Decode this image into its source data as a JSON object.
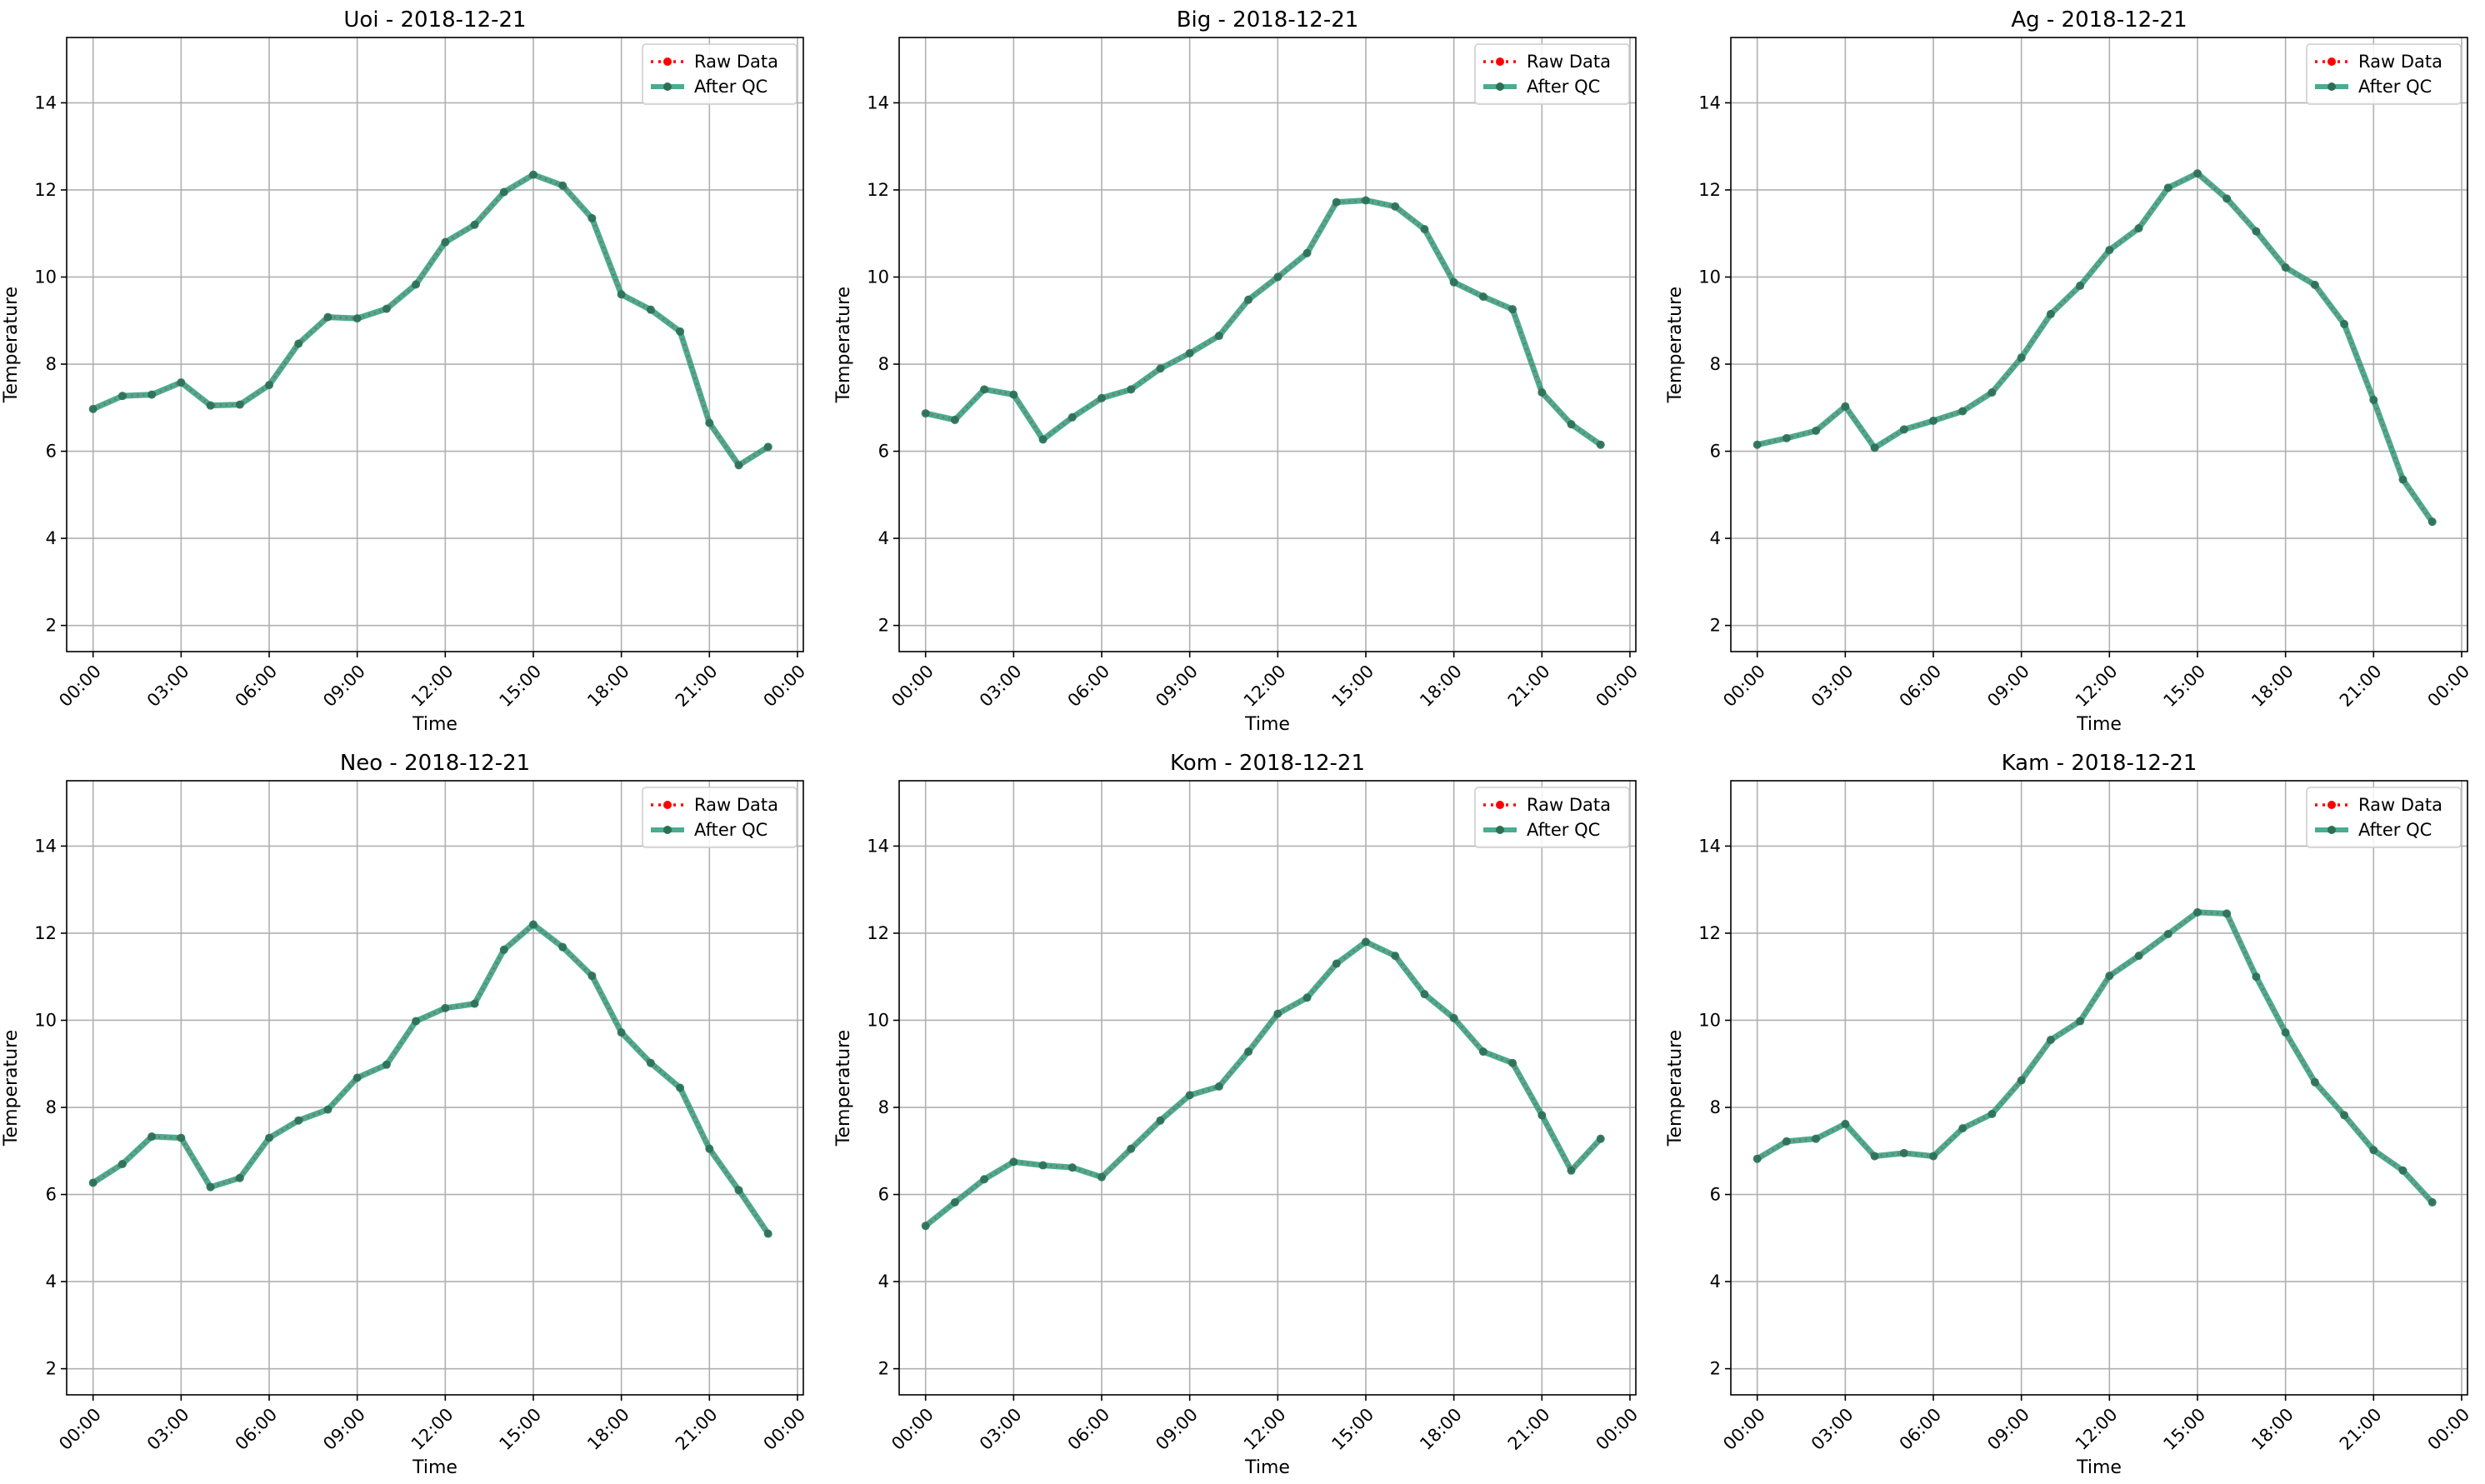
{
  "chart_data": [
    {
      "type": "line",
      "title": "Uoi - 2018-12-21",
      "xlabel": "Time",
      "ylabel": "Temperature",
      "ylim": [
        1.4,
        15.5
      ],
      "xlim_hours": [
        -0.9,
        24.2
      ],
      "x_ticks": [
        "00:00",
        "03:00",
        "06:00",
        "09:00",
        "12:00",
        "15:00",
        "18:00",
        "21:00",
        "00:00"
      ],
      "y_ticks": [
        2,
        4,
        6,
        8,
        10,
        12,
        14
      ],
      "grid": true,
      "legend": "top-right",
      "x": [
        "00:00",
        "01:00",
        "02:00",
        "03:00",
        "04:00",
        "05:00",
        "06:00",
        "07:00",
        "08:00",
        "09:00",
        "10:00",
        "11:00",
        "12:00",
        "13:00",
        "14:00",
        "15:00",
        "16:00",
        "17:00",
        "18:00",
        "19:00",
        "20:00",
        "21:00",
        "22:00",
        "23:00"
      ],
      "series": [
        {
          "name": "Raw Data",
          "color": "#ff0000",
          "values": [
            6.97,
            7.27,
            7.3,
            7.58,
            7.05,
            7.07,
            7.52,
            8.47,
            9.08,
            9.05,
            9.27,
            9.83,
            10.8,
            11.2,
            11.95,
            12.35,
            12.1,
            11.35,
            9.6,
            9.25,
            8.75,
            6.65,
            5.68,
            6.1
          ]
        },
        {
          "name": "After QC",
          "color": "#2a9d7c",
          "values": [
            6.97,
            7.27,
            7.3,
            7.58,
            7.05,
            7.07,
            7.52,
            8.47,
            9.08,
            9.05,
            9.27,
            9.83,
            10.8,
            11.2,
            11.95,
            12.35,
            12.1,
            11.35,
            9.6,
            9.25,
            8.75,
            6.65,
            5.68,
            6.1
          ]
        }
      ]
    },
    {
      "type": "line",
      "title": "Big - 2018-12-21",
      "xlabel": "Time",
      "ylabel": "Temperature",
      "ylim": [
        1.4,
        15.5
      ],
      "xlim_hours": [
        -0.9,
        24.2
      ],
      "x_ticks": [
        "00:00",
        "03:00",
        "06:00",
        "09:00",
        "12:00",
        "15:00",
        "18:00",
        "21:00",
        "00:00"
      ],
      "y_ticks": [
        2,
        4,
        6,
        8,
        10,
        12,
        14
      ],
      "grid": true,
      "legend": "top-right",
      "x": [
        "00:00",
        "01:00",
        "02:00",
        "03:00",
        "04:00",
        "05:00",
        "06:00",
        "07:00",
        "08:00",
        "09:00",
        "10:00",
        "11:00",
        "12:00",
        "13:00",
        "14:00",
        "15:00",
        "16:00",
        "17:00",
        "18:00",
        "19:00",
        "20:00",
        "21:00",
        "22:00",
        "23:00"
      ],
      "series": [
        {
          "name": "Raw Data",
          "color": "#ff0000",
          "values": [
            6.87,
            6.72,
            7.42,
            7.3,
            6.27,
            6.78,
            7.22,
            7.42,
            7.9,
            8.25,
            8.65,
            9.48,
            10.0,
            10.55,
            11.72,
            11.76,
            11.62,
            11.1,
            9.88,
            9.55,
            9.26,
            7.35,
            6.62,
            6.15
          ]
        },
        {
          "name": "After QC",
          "color": "#2a9d7c",
          "values": [
            6.87,
            6.72,
            7.42,
            7.3,
            6.27,
            6.78,
            7.22,
            7.42,
            7.9,
            8.25,
            8.65,
            9.48,
            10.0,
            10.55,
            11.72,
            11.76,
            11.62,
            11.1,
            9.88,
            9.55,
            9.26,
            7.35,
            6.62,
            6.15
          ]
        }
      ]
    },
    {
      "type": "line",
      "title": "Ag - 2018-12-21",
      "xlabel": "Time",
      "ylabel": "Temperature",
      "ylim": [
        1.4,
        15.5
      ],
      "xlim_hours": [
        -0.9,
        24.2
      ],
      "x_ticks": [
        "00:00",
        "03:00",
        "06:00",
        "09:00",
        "12:00",
        "15:00",
        "18:00",
        "21:00",
        "00:00"
      ],
      "y_ticks": [
        2,
        4,
        6,
        8,
        10,
        12,
        14
      ],
      "grid": true,
      "legend": "top-right",
      "x": [
        "00:00",
        "01:00",
        "02:00",
        "03:00",
        "04:00",
        "05:00",
        "06:00",
        "07:00",
        "08:00",
        "09:00",
        "10:00",
        "11:00",
        "12:00",
        "13:00",
        "14:00",
        "15:00",
        "16:00",
        "17:00",
        "18:00",
        "19:00",
        "20:00",
        "21:00",
        "22:00",
        "23:00"
      ],
      "series": [
        {
          "name": "Raw Data",
          "color": "#ff0000",
          "values": [
            6.15,
            6.3,
            6.47,
            7.03,
            6.08,
            6.5,
            6.7,
            6.92,
            7.35,
            8.15,
            9.15,
            9.8,
            10.62,
            11.12,
            12.05,
            12.38,
            11.8,
            11.05,
            10.22,
            9.82,
            8.92,
            7.18,
            5.35,
            4.38
          ]
        },
        {
          "name": "After QC",
          "color": "#2a9d7c",
          "values": [
            6.15,
            6.3,
            6.47,
            7.03,
            6.08,
            6.5,
            6.7,
            6.92,
            7.35,
            8.15,
            9.15,
            9.8,
            10.62,
            11.12,
            12.05,
            12.38,
            11.8,
            11.05,
            10.22,
            9.82,
            8.92,
            7.18,
            5.35,
            4.38
          ]
        }
      ]
    },
    {
      "type": "line",
      "title": "Neo - 2018-12-21",
      "xlabel": "Time",
      "ylabel": "Temperature",
      "ylim": [
        1.4,
        15.5
      ],
      "xlim_hours": [
        -0.9,
        24.2
      ],
      "x_ticks": [
        "00:00",
        "03:00",
        "06:00",
        "09:00",
        "12:00",
        "15:00",
        "18:00",
        "21:00",
        "00:00"
      ],
      "y_ticks": [
        2,
        4,
        6,
        8,
        10,
        12,
        14
      ],
      "grid": true,
      "legend": "top-right",
      "x": [
        "00:00",
        "01:00",
        "02:00",
        "03:00",
        "04:00",
        "05:00",
        "06:00",
        "07:00",
        "08:00",
        "09:00",
        "10:00",
        "11:00",
        "12:00",
        "13:00",
        "14:00",
        "15:00",
        "16:00",
        "17:00",
        "18:00",
        "19:00",
        "20:00",
        "21:00",
        "22:00",
        "23:00"
      ],
      "series": [
        {
          "name": "Raw Data",
          "color": "#ff0000",
          "values": [
            6.27,
            6.7,
            7.33,
            7.3,
            6.17,
            6.38,
            7.3,
            7.7,
            7.95,
            8.68,
            8.98,
            9.98,
            10.28,
            10.38,
            11.62,
            12.2,
            11.68,
            11.02,
            9.72,
            9.02,
            8.45,
            7.05,
            6.1,
            5.1
          ]
        },
        {
          "name": "After QC",
          "color": "#2a9d7c",
          "values": [
            6.27,
            6.7,
            7.33,
            7.3,
            6.17,
            6.38,
            7.3,
            7.7,
            7.95,
            8.68,
            8.98,
            9.98,
            10.28,
            10.38,
            11.62,
            12.2,
            11.68,
            11.02,
            9.72,
            9.02,
            8.45,
            7.05,
            6.1,
            5.1
          ]
        }
      ]
    },
    {
      "type": "line",
      "title": "Kom - 2018-12-21",
      "xlabel": "Time",
      "ylabel": "Temperature",
      "ylim": [
        1.4,
        15.5
      ],
      "xlim_hours": [
        -0.9,
        24.2
      ],
      "x_ticks": [
        "00:00",
        "03:00",
        "06:00",
        "09:00",
        "12:00",
        "15:00",
        "18:00",
        "21:00",
        "00:00"
      ],
      "y_ticks": [
        2,
        4,
        6,
        8,
        10,
        12,
        14
      ],
      "grid": true,
      "legend": "top-right",
      "x": [
        "00:00",
        "01:00",
        "02:00",
        "03:00",
        "04:00",
        "05:00",
        "06:00",
        "07:00",
        "08:00",
        "09:00",
        "10:00",
        "11:00",
        "12:00",
        "13:00",
        "14:00",
        "15:00",
        "16:00",
        "17:00",
        "18:00",
        "19:00",
        "20:00",
        "21:00",
        "22:00",
        "23:00"
      ],
      "series": [
        {
          "name": "Raw Data",
          "color": "#ff0000",
          "values": [
            5.28,
            5.82,
            6.35,
            6.75,
            6.67,
            6.62,
            6.4,
            7.05,
            7.7,
            8.28,
            8.48,
            9.28,
            10.15,
            10.52,
            11.3,
            11.8,
            11.48,
            10.6,
            10.05,
            9.28,
            9.02,
            7.82,
            6.55,
            7.28
          ]
        },
        {
          "name": "After QC",
          "color": "#2a9d7c",
          "values": [
            5.28,
            5.82,
            6.35,
            6.75,
            6.67,
            6.62,
            6.4,
            7.05,
            7.7,
            8.28,
            8.48,
            9.28,
            10.15,
            10.52,
            11.3,
            11.8,
            11.48,
            10.6,
            10.05,
            9.28,
            9.02,
            7.82,
            6.55,
            7.28
          ]
        }
      ]
    },
    {
      "type": "line",
      "title": "Kam - 2018-12-21",
      "xlabel": "Time",
      "ylabel": "Temperature",
      "ylim": [
        1.4,
        15.5
      ],
      "xlim_hours": [
        -0.9,
        24.2
      ],
      "x_ticks": [
        "00:00",
        "03:00",
        "06:00",
        "09:00",
        "12:00",
        "15:00",
        "18:00",
        "21:00",
        "00:00"
      ],
      "y_ticks": [
        2,
        4,
        6,
        8,
        10,
        12,
        14
      ],
      "grid": true,
      "legend": "top-right",
      "x": [
        "00:00",
        "01:00",
        "02:00",
        "03:00",
        "04:00",
        "05:00",
        "06:00",
        "07:00",
        "08:00",
        "09:00",
        "10:00",
        "11:00",
        "12:00",
        "13:00",
        "14:00",
        "15:00",
        "16:00",
        "17:00",
        "18:00",
        "19:00",
        "20:00",
        "21:00",
        "22:00",
        "23:00"
      ],
      "series": [
        {
          "name": "Raw Data",
          "color": "#ff0000",
          "values": [
            6.82,
            7.22,
            7.28,
            7.62,
            6.88,
            6.95,
            6.88,
            7.52,
            7.85,
            8.62,
            9.55,
            9.98,
            11.02,
            11.48,
            11.98,
            12.48,
            12.45,
            11.0,
            9.72,
            8.58,
            7.82,
            7.02,
            6.55,
            5.82
          ]
        },
        {
          "name": "After QC",
          "color": "#2a9d7c",
          "values": [
            6.82,
            7.22,
            7.28,
            7.62,
            6.88,
            6.95,
            6.88,
            7.52,
            7.85,
            8.62,
            9.55,
            9.98,
            11.02,
            11.48,
            11.98,
            12.48,
            12.45,
            11.0,
            9.72,
            8.58,
            7.82,
            7.02,
            6.55,
            5.82
          ]
        }
      ]
    }
  ]
}
